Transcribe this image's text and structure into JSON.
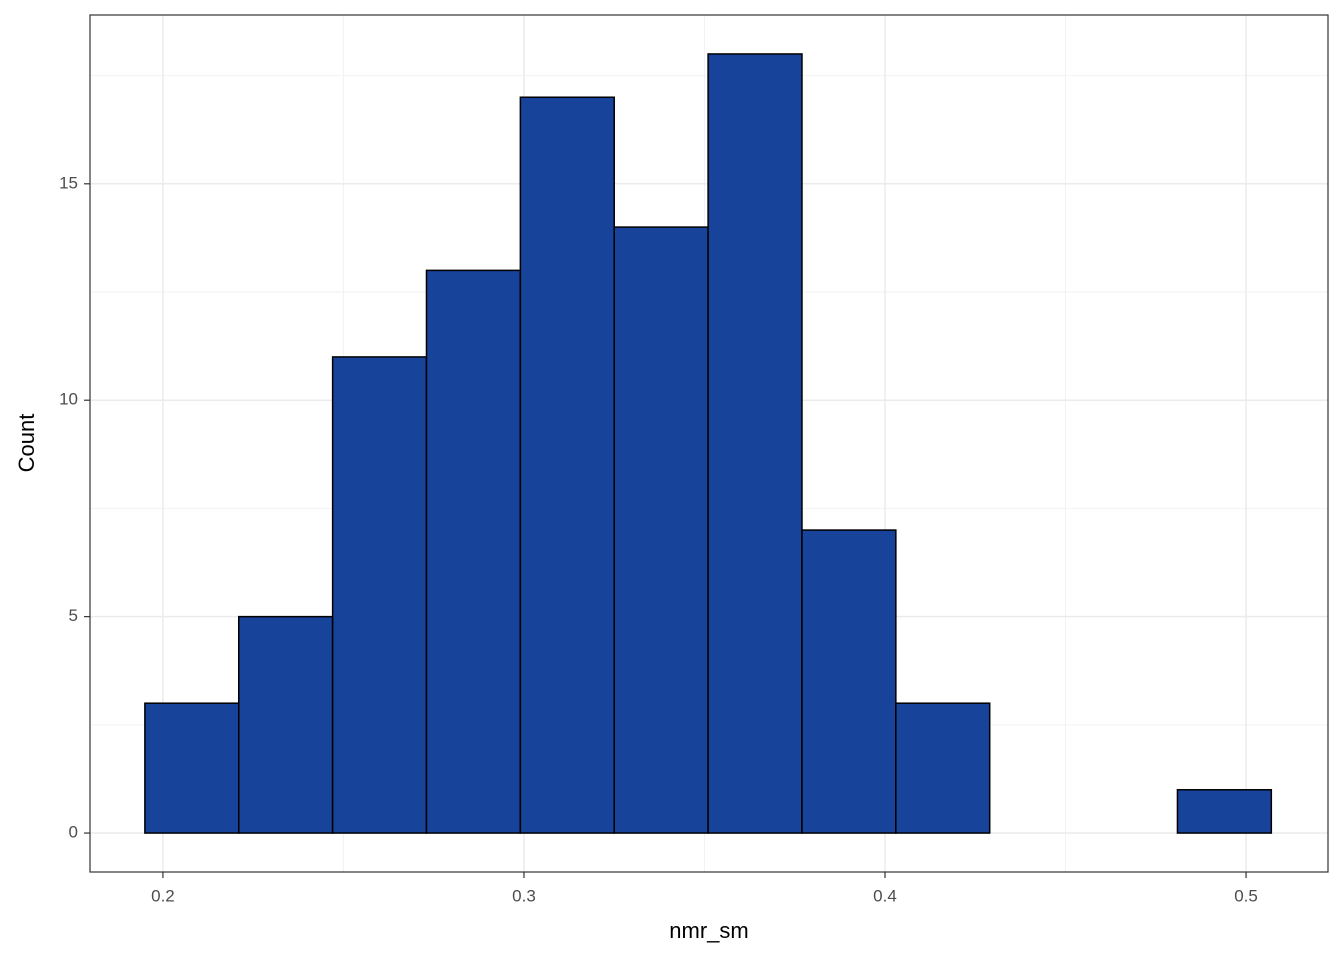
{
  "chart_data": {
    "type": "histogram",
    "x_label": "nmr_sm",
    "y_label": "Count",
    "bins": [
      0.195,
      0.221,
      0.247,
      0.273,
      0.299,
      0.325,
      0.351,
      0.377,
      0.403,
      0.429,
      0.455,
      0.481,
      0.507
    ],
    "values": [
      3,
      5,
      11,
      13,
      17,
      14,
      18,
      7,
      3,
      0,
      0,
      1
    ],
    "color": "#18439a",
    "xlim": [
      0.1798,
      0.5227
    ],
    "xticks": [
      0.2,
      0.3,
      0.4,
      0.5
    ],
    "ylim": [
      -0.9,
      18.9
    ],
    "yticks": [
      0,
      5,
      10,
      15
    ],
    "grid": true
  }
}
